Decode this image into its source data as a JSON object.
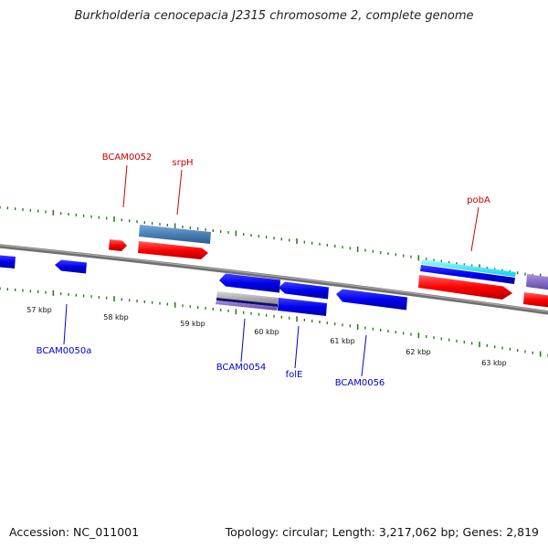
{
  "title": "Burkholderia cenocepacia J2315 chromosome 2, complete genome",
  "footer": {
    "accession": "Accession: NC_011001",
    "summary": "Topology: circular; Length: 3,217,062 bp; Genes: 2,819"
  },
  "colors": {
    "backbone": "#808080",
    "tick": "#2e7d1f",
    "forward_gene": "#ff0000",
    "reverse_gene": "#0000ff",
    "forward_label": "#cc0000",
    "reverse_label": "#0000cc",
    "steelblue_band": "#4a7fb5",
    "cyan_band": "#00e5ff",
    "purple_band": "#8060c0"
  },
  "scale_labels": [
    "57 kbp",
    "58 kbp",
    "59 kbp",
    "60 kbp",
    "61 kbp",
    "62 kbp",
    "63 kbp"
  ],
  "gene_labels_forward": [
    "BCAM0052",
    "srpH",
    "pobA"
  ],
  "gene_labels_reverse": [
    "BCAM0050a",
    "BCAM0054",
    "folE",
    "BCAM0056"
  ]
}
